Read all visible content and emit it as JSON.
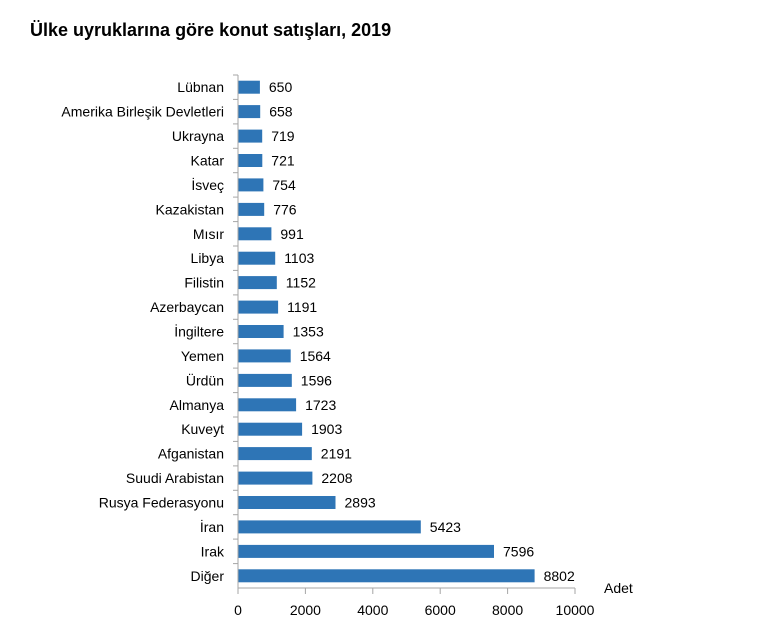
{
  "chart_data": {
    "type": "bar",
    "orientation": "horizontal",
    "title": "Ülke uyruklarına göre konut satışları, 2019",
    "categories": [
      "Lübnan",
      "Amerika Birleşik Devletleri",
      "Ukrayna",
      "Katar",
      "İsveç",
      "Kazakistan",
      "Mısır",
      "Libya",
      "Filistin",
      "Azerbaycan",
      "İngiltere",
      "Yemen",
      "Ürdün",
      "Almanya",
      "Kuveyt",
      "Afganistan",
      "Suudi Arabistan",
      "Rusya Federasyonu",
      "İran",
      "Irak",
      "Diğer"
    ],
    "values": [
      650,
      658,
      719,
      721,
      754,
      776,
      991,
      1103,
      1152,
      1191,
      1353,
      1564,
      1596,
      1723,
      1903,
      2191,
      2208,
      2893,
      5423,
      7596,
      8802
    ],
    "xlabel": "Adet",
    "xlim": [
      0,
      10000
    ],
    "xticks": [
      0,
      2000,
      4000,
      6000,
      8000,
      10000
    ],
    "grid": false,
    "bar_color": "#2e75b6",
    "axis_color": "#a6a6a6"
  }
}
